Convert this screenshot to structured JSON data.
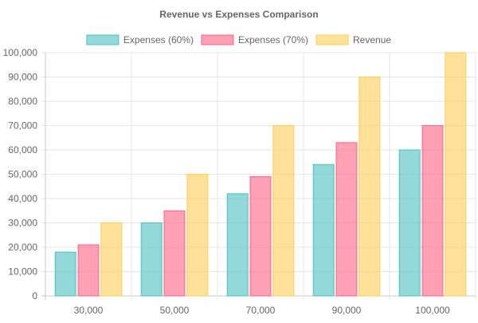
{
  "chart_data": {
    "type": "bar",
    "title": "Revenue vs Expenses Comparison",
    "xlabel": "",
    "ylabel": "",
    "categories": [
      "30,000",
      "50,000",
      "70,000",
      "90,000",
      "100,000"
    ],
    "series": [
      {
        "name": "Expenses (60%)",
        "values": [
          18000,
          30000,
          42000,
          54000,
          60000
        ],
        "color": "#4BC0C0"
      },
      {
        "name": "Expenses (70%)",
        "values": [
          21000,
          35000,
          49000,
          63000,
          70000
        ],
        "color": "#FF6384"
      },
      {
        "name": "Revenue",
        "values": [
          30000,
          50000,
          70000,
          90000,
          100000
        ],
        "color": "#FFCD56"
      }
    ],
    "ylim": [
      0,
      100000
    ],
    "yticks": [
      0,
      10000,
      20000,
      30000,
      40000,
      50000,
      60000,
      70000,
      80000,
      90000,
      100000
    ],
    "ytick_labels": [
      "0",
      "10,000",
      "20,000",
      "30,000",
      "40,000",
      "50,000",
      "60,000",
      "70,000",
      "80,000",
      "90,000",
      "100,000"
    ],
    "grid": true,
    "legend_position": "top-center"
  }
}
